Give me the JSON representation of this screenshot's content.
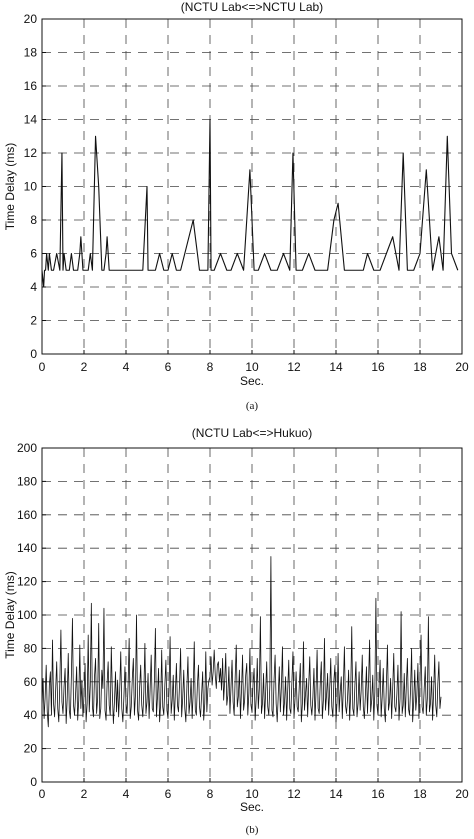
{
  "figure": {
    "panels": [
      {
        "caption": "(a)"
      },
      {
        "caption": "(b)"
      }
    ]
  },
  "chart_data": [
    {
      "type": "line",
      "title": "(NCTU Lab<=>NCTU Lab)",
      "xlabel": "Sec.",
      "ylabel": "Time Delay (ms)",
      "xlim": [
        0,
        20
      ],
      "ylim": [
        0,
        20
      ],
      "xticks": [
        0,
        2,
        4,
        6,
        8,
        10,
        12,
        14,
        16,
        18,
        20
      ],
      "yticks": [
        0,
        2,
        4,
        6,
        8,
        10,
        12,
        14,
        16,
        18,
        20
      ],
      "grid": true,
      "grid_style": "dashed",
      "line_color": "#111111",
      "series": [
        {
          "x": [
            0.0,
            0.08,
            0.12,
            0.17,
            0.22,
            0.3,
            0.35,
            0.45,
            0.5,
            0.55,
            0.7,
            0.85,
            0.95,
            1.0,
            1.05,
            1.15,
            1.3,
            1.4,
            1.5,
            1.6,
            1.7,
            1.8,
            1.85,
            1.95,
            2.1,
            2.2,
            2.3,
            2.4,
            2.55,
            2.7,
            2.85,
            2.95,
            3.05,
            3.1,
            3.2,
            3.3,
            3.45,
            3.6,
            3.8,
            4.0,
            4.2,
            4.4,
            4.6,
            4.8,
            5.0,
            5.05,
            5.2,
            5.4,
            5.6,
            5.8,
            6.0,
            6.2,
            6.4,
            6.6,
            6.8,
            7.0,
            7.2,
            7.5,
            7.7,
            7.9,
            8.0,
            8.05,
            8.2,
            8.5,
            8.8,
            9.0,
            9.3,
            9.6,
            9.9,
            10.1,
            10.3,
            10.6,
            10.9,
            11.2,
            11.5,
            11.8,
            11.95,
            12.1,
            12.4,
            12.7,
            13.0,
            13.3,
            13.6,
            13.9,
            14.1,
            14.4,
            14.7,
            15.0,
            15.3,
            15.5,
            15.8,
            16.1,
            16.4,
            16.7,
            17.0,
            17.2,
            17.4,
            17.7,
            18.0,
            18.3,
            18.6,
            18.9,
            19.1,
            19.3,
            19.5,
            19.8
          ],
          "y": [
            5,
            4,
            5,
            5,
            6,
            5,
            6,
            5,
            5,
            5,
            6,
            5,
            12,
            5,
            6,
            5,
            5,
            6,
            5,
            5,
            5,
            6,
            7,
            5,
            5,
            5,
            6,
            5,
            13,
            10,
            5,
            5,
            6,
            7,
            5,
            5,
            5,
            5,
            5,
            5,
            5,
            5,
            5,
            5,
            10,
            5,
            5,
            5,
            6,
            5,
            5,
            6,
            5,
            5,
            6,
            7,
            8,
            5,
            5,
            5,
            14,
            5,
            5,
            6,
            5,
            5,
            6,
            5,
            11,
            5,
            5,
            6,
            5,
            5,
            6,
            5,
            12,
            5,
            5,
            6,
            5,
            5,
            5,
            8,
            9,
            5,
            5,
            5,
            5,
            6,
            5,
            5,
            6,
            7,
            5,
            12,
            5,
            5,
            6,
            11,
            5,
            7,
            5,
            13,
            6,
            5
          ]
        }
      ]
    },
    {
      "type": "line",
      "title": "(NCTU Lab<=>Hukuo)",
      "xlabel": "Sec.",
      "ylabel": "Time Delay (ms)",
      "xlim": [
        0,
        20
      ],
      "ylim": [
        0,
        200
      ],
      "xticks": [
        0,
        2,
        4,
        6,
        8,
        10,
        12,
        14,
        16,
        18,
        20
      ],
      "yticks": [
        0,
        20,
        40,
        60,
        80,
        100,
        120,
        140,
        160,
        180,
        200
      ],
      "grid": true,
      "grid_style": "dashed",
      "line_color": "#111111",
      "series": [
        {
          "x_start": 0,
          "x_step": 0.05,
          "y": [
            45,
            62,
            38,
            51,
            70,
            42,
            33,
            58,
            66,
            40,
            85,
            47,
            39,
            55,
            72,
            44,
            36,
            60,
            91,
            48,
            41,
            57,
            68,
            35,
            50,
            77,
            43,
            38,
            64,
            98,
            46,
            40,
            53,
            69,
            37,
            49,
            82,
            44,
            61,
            39,
            52,
            71,
            36,
            47,
            88,
            42,
            58,
            107,
            45,
            39,
            63,
            74,
            41,
            50,
            95,
            38,
            44,
            67,
            56,
            104,
            43,
            37,
            59,
            72,
            46,
            40,
            81,
            53,
            35,
            48,
            66,
            42,
            61,
            39,
            55,
            78,
            44,
            36,
            51,
            69,
            47,
            41,
            58,
            86,
            38,
            45,
            62,
            74,
            40,
            52,
            100,
            43,
            37,
            57,
            70,
            46,
            39,
            54,
            83,
            41,
            48,
            65,
            38,
            56,
            76,
            44,
            42,
            60,
            92,
            39,
            51,
            68,
            36,
            47,
            79,
            45,
            40,
            58,
            73,
            43,
            38,
            55,
            87,
            41,
            49,
            64,
            37,
            53,
            71,
            46,
            42,
            59,
            80,
            39,
            50,
            67,
            44,
            36,
            57,
            75,
            41,
            48,
            62,
            38,
            54,
            84,
            43,
            40,
            58,
            70,
            45,
            39,
            52,
            66,
            37,
            47,
            78,
            42,
            56,
            61,
            63,
            75,
            58,
            66,
            79,
            64,
            56,
            70,
            72,
            60,
            68,
            55,
            74,
            49,
            61,
            77,
            46,
            52,
            69,
            41,
            57,
            73,
            48,
            40,
            63,
            82,
            45,
            51,
            67,
            38,
            55,
            76,
            43,
            49,
            64,
            71,
            40,
            53,
            80,
            46,
            42,
            59,
            68,
            37,
            50,
            74,
            44,
            56,
            99,
            41,
            47,
            65,
            38,
            54,
            72,
            45,
            40,
            58,
            135,
            43,
            39,
            61,
            76,
            47,
            36,
            52,
            69,
            42,
            57,
            81,
            40,
            48,
            63,
            37,
            55,
            73,
            44,
            41,
            60,
            78,
            38,
            50,
            66,
            45,
            42,
            57,
            71,
            36,
            47,
            84,
            43,
            53,
            62,
            39,
            58,
            75,
            46,
            40,
            51,
            68,
            37,
            55,
            79,
            44,
            41,
            59,
            72,
            38,
            49,
            86,
            43,
            52,
            65,
            40,
            56,
            74,
            45,
            39,
            61,
            70,
            36,
            48,
            77,
            42,
            54,
            63,
            38,
            57,
            81,
            46,
            41,
            50,
            67,
            37,
            53,
            93,
            44,
            40,
            58,
            72,
            39,
            47,
            66,
            43,
            55,
            76,
            45,
            38,
            52,
            69,
            41,
            60,
            85,
            42,
            49,
            64,
            37,
            54,
            110,
            46,
            40,
            57,
            73,
            39,
            51,
            68,
            44,
            36,
            59,
            82,
            43,
            48,
            62,
            38,
            56,
            77,
            45,
            42,
            53,
            70,
            37,
            50,
            102,
            41,
            46,
            65,
            39,
            58,
            74,
            44,
            40,
            55,
            80,
            36,
            48,
            67,
            43,
            52,
            71,
            38,
            61,
            88,
            45,
            41,
            56,
            69,
            40,
            50,
            99,
            42,
            47,
            63,
            37,
            54,
            76,
            46,
            39,
            59,
            72,
            44,
            51
          ]
        }
      ]
    }
  ]
}
